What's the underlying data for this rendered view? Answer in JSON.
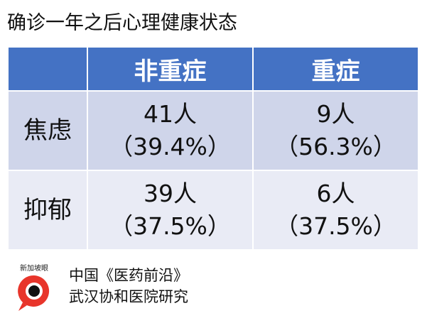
{
  "title": "确诊一年之后心理健康状态",
  "table": {
    "header": [
      "非重症",
      "重症"
    ],
    "rows": [
      {
        "label": "焦虑",
        "cells": [
          {
            "count": "41人",
            "percent": "（39.4%）"
          },
          {
            "count": "9人",
            "percent": "（56.3%）"
          }
        ]
      },
      {
        "label": "抑郁",
        "cells": [
          {
            "count": "39人",
            "percent": "（37.5%）"
          },
          {
            "count": "6人",
            "percent": "（37.5%）"
          }
        ]
      }
    ]
  },
  "footer": {
    "logo": "新加坡眼",
    "source": [
      "中国《医药前沿》",
      "武汉协和医院研究"
    ]
  }
}
